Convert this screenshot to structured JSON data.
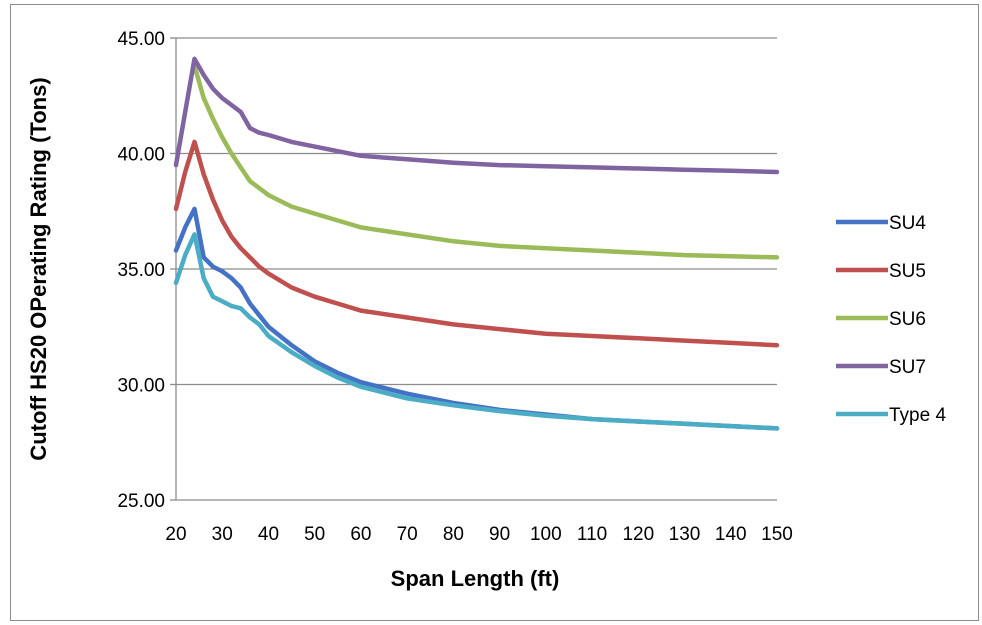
{
  "chart_data": {
    "type": "line",
    "title": "",
    "xlabel": "Span Length (ft)",
    "ylabel": "Cutoff HS20 OPerating Rating (Tons)",
    "xlim": [
      20,
      150
    ],
    "ylim": [
      25,
      45
    ],
    "x_ticks": [
      "20",
      "30",
      "40",
      "50",
      "60",
      "70",
      "80",
      "90",
      "100",
      "110",
      "120",
      "130",
      "140",
      "150"
    ],
    "y_ticks": [
      "25.00",
      "30.00",
      "35.00",
      "40.00",
      "45.00"
    ],
    "grid": "horizontal",
    "legend_position": "right",
    "x": [
      20,
      22,
      24,
      26,
      28,
      30,
      32,
      34,
      36,
      38,
      40,
      45,
      50,
      55,
      60,
      70,
      80,
      90,
      100,
      110,
      120,
      130,
      140,
      150
    ],
    "series": [
      {
        "name": "SU4",
        "color": "#4472C4",
        "values": [
          35.8,
          36.8,
          37.6,
          35.5,
          35.1,
          34.9,
          34.6,
          34.2,
          33.5,
          33.0,
          32.5,
          31.7,
          31.0,
          30.5,
          30.1,
          29.6,
          29.2,
          28.9,
          28.7,
          28.5,
          28.4,
          28.3,
          28.2,
          28.1
        ]
      },
      {
        "name": "SU5",
        "color": "#C0504D",
        "values": [
          37.6,
          39.2,
          40.5,
          39.1,
          38.0,
          37.1,
          36.4,
          35.9,
          35.5,
          35.1,
          34.8,
          34.2,
          33.8,
          33.5,
          33.2,
          32.9,
          32.6,
          32.4,
          32.2,
          32.1,
          32.0,
          31.9,
          31.8,
          31.7
        ]
      },
      {
        "name": "SU6",
        "color": "#9BBB59",
        "values": [
          null,
          null,
          43.8,
          42.4,
          41.5,
          40.7,
          40.0,
          39.4,
          38.8,
          38.5,
          38.2,
          37.7,
          37.4,
          37.1,
          36.8,
          36.5,
          36.2,
          36.0,
          35.9,
          35.8,
          35.7,
          35.6,
          35.55,
          35.5
        ]
      },
      {
        "name": "SU7",
        "color": "#8064A2",
        "values": [
          39.5,
          41.8,
          44.1,
          43.4,
          42.8,
          42.4,
          42.1,
          41.8,
          41.1,
          40.9,
          40.8,
          40.5,
          40.3,
          40.1,
          39.9,
          39.75,
          39.6,
          39.5,
          39.45,
          39.4,
          39.35,
          39.3,
          39.25,
          39.2
        ]
      },
      {
        "name": "Type 4",
        "color": "#4BACC6",
        "values": [
          34.4,
          35.6,
          36.5,
          34.6,
          33.8,
          33.6,
          33.4,
          33.3,
          32.9,
          32.6,
          32.1,
          31.4,
          30.8,
          30.3,
          29.9,
          29.4,
          29.1,
          28.85,
          28.65,
          28.5,
          28.4,
          28.3,
          28.2,
          28.1
        ]
      }
    ]
  }
}
